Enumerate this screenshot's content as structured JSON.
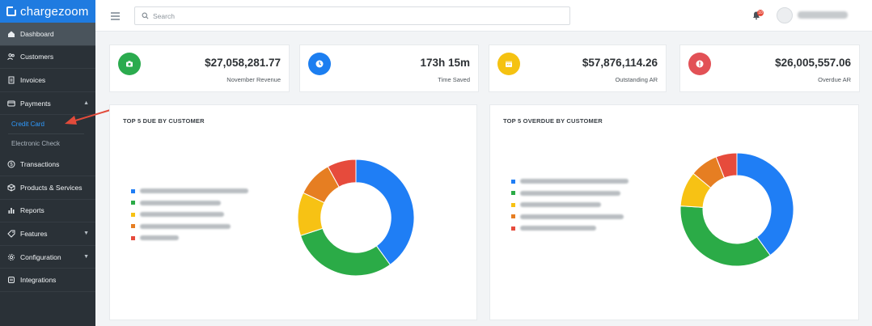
{
  "app": {
    "brand_name": "chargezoom"
  },
  "sidebar": {
    "items": [
      {
        "label": "Dashboard",
        "icon": "dashboard-icon",
        "active": true
      },
      {
        "label": "Customers",
        "icon": "users-icon"
      },
      {
        "label": "Invoices",
        "icon": "invoice-icon"
      },
      {
        "label": "Payments",
        "icon": "credit-card-icon",
        "expanded": true
      },
      {
        "label": "Transactions",
        "icon": "dollar-circle-icon"
      },
      {
        "label": "Products & Services",
        "icon": "box-icon"
      },
      {
        "label": "Reports",
        "icon": "bar-chart-icon"
      },
      {
        "label": "Features",
        "icon": "tag-icon",
        "has_caret": true
      },
      {
        "label": "Configuration",
        "icon": "gear-icon",
        "has_caret": true
      },
      {
        "label": "Integrations",
        "icon": "plug-icon"
      }
    ],
    "payments_sub": [
      {
        "label": "Credit Card",
        "active": true
      },
      {
        "label": "Electronic Check"
      }
    ]
  },
  "topbar": {
    "search_placeholder": "Search",
    "notification_count": "10"
  },
  "stats": [
    {
      "value": "$27,058,281.77",
      "label": "November Revenue",
      "icon": "camera-icon",
      "color": "#2bab4e"
    },
    {
      "value": "173h 15m",
      "label": "Time Saved",
      "icon": "clock-icon",
      "color": "#1c7ef0"
    },
    {
      "value": "$57,876,114.26",
      "label": "Outstanding AR",
      "icon": "calendar-icon",
      "color": "#f5c211"
    },
    {
      "value": "$26,005,557.06",
      "label": "Overdue AR",
      "icon": "alert-icon",
      "color": "#e25156"
    }
  ],
  "panels": [
    {
      "title": "TOP 5 DUE BY CUSTOMER"
    },
    {
      "title": "TOP 5 OVERDUE BY CUSTOMER"
    }
  ],
  "colors": {
    "series": [
      "#1f7ef5",
      "#2bab47",
      "#f7c214",
      "#e67e22",
      "#e64b3c"
    ]
  },
  "chart_data": [
    {
      "type": "pie",
      "title": "TOP 5 DUE BY CUSTOMER",
      "donut": true,
      "values": [
        40,
        30,
        12,
        10,
        8
      ],
      "legend_position": "left"
    },
    {
      "type": "pie",
      "title": "TOP 5 OVERDUE BY CUSTOMER",
      "donut": true,
      "values": [
        40,
        36,
        10,
        8,
        6
      ],
      "legend_position": "left"
    }
  ]
}
